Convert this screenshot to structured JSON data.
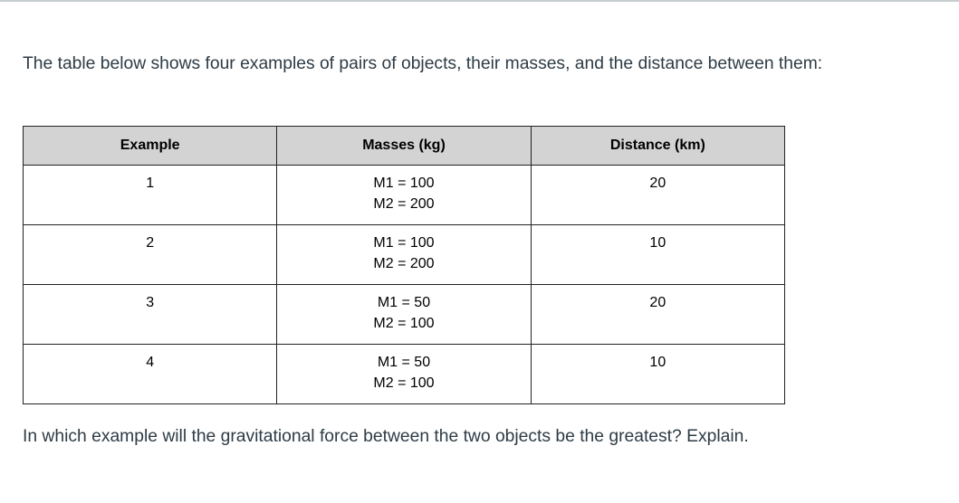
{
  "intro": "The table below shows four examples of pairs of objects, their masses, and the distance between them:",
  "table": {
    "headers": [
      "Example",
      "Masses (kg)",
      "Distance (km)"
    ],
    "rows": [
      {
        "example": "1",
        "m1": "M1 = 100",
        "m2": "M2 = 200",
        "distance": "20"
      },
      {
        "example": "2",
        "m1": "M1 = 100",
        "m2": "M2 = 200",
        "distance": "10"
      },
      {
        "example": "3",
        "m1": "M1 = 50",
        "m2": "M2 = 100",
        "distance": "20"
      },
      {
        "example": "4",
        "m1": "M1 = 50",
        "m2": "M2 = 100",
        "distance": "10"
      }
    ]
  },
  "question": "In which example will the gravitational force between the two objects be the greatest? Explain."
}
